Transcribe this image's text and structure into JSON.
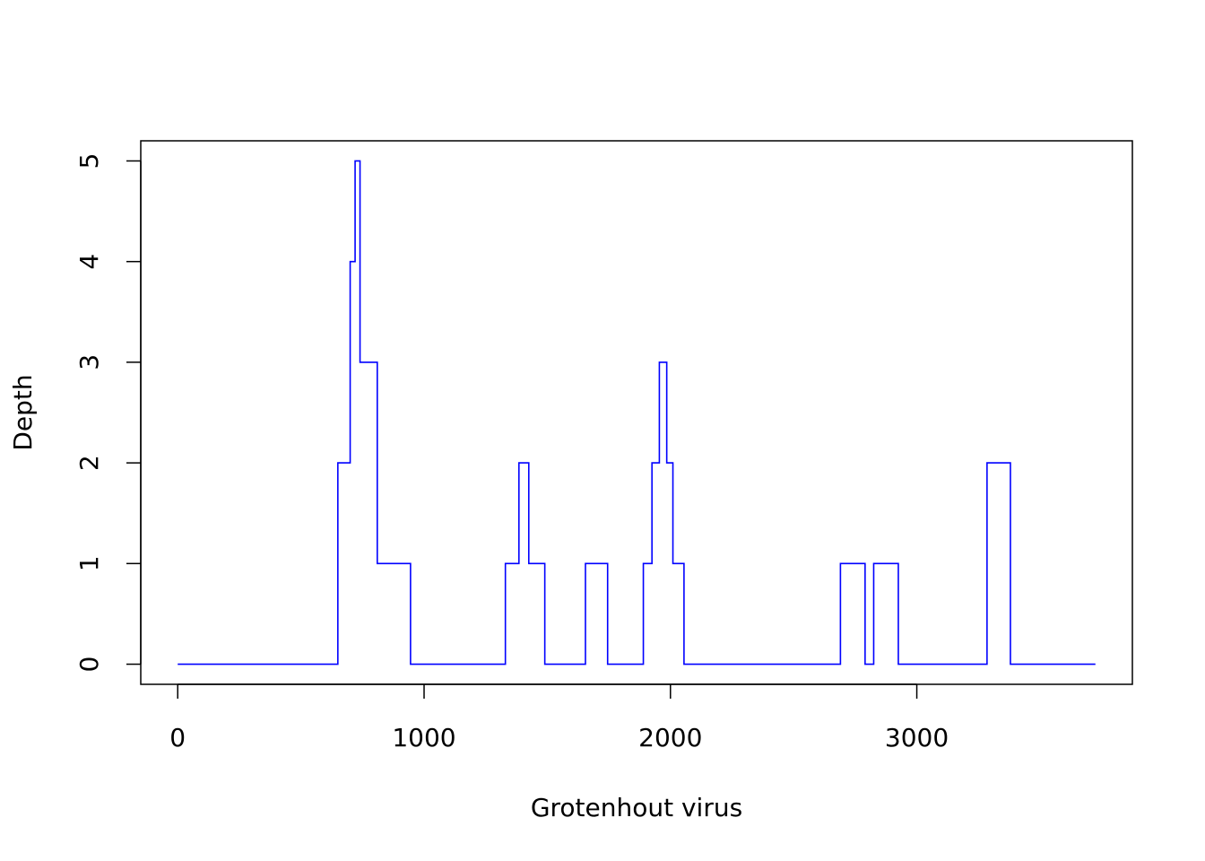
{
  "chart_data": {
    "type": "line",
    "title": "",
    "xlabel": "Grotenhout virus",
    "ylabel": "Depth",
    "xlim": [
      -150,
      3875
    ],
    "ylim": [
      -0.2,
      5.2
    ],
    "x_ticks": [
      0,
      1000,
      2000,
      3000
    ],
    "x_tick_labels": [
      "0",
      "1000",
      "2000",
      "3000"
    ],
    "y_ticks": [
      0,
      1,
      2,
      3,
      4,
      5
    ],
    "y_tick_labels": [
      "0",
      "1",
      "2",
      "3",
      "4",
      "5"
    ],
    "grid": false,
    "legend": "none",
    "series": [
      {
        "color": "#0000ff",
        "style": "step",
        "x": [
          0,
          650,
          690,
          700,
          720,
          740,
          790,
          810,
          840,
          945,
          1330,
          1385,
          1425,
          1490,
          1655,
          1745,
          1890,
          1925,
          1955,
          1985,
          2010,
          2055,
          2690,
          2790,
          2825,
          2925,
          3285,
          3380,
          3725
        ],
        "y": [
          0,
          2,
          2,
          4,
          5,
          3,
          3,
          1,
          1,
          0,
          1,
          2,
          1,
          0,
          1,
          0,
          1,
          2,
          3,
          2,
          1,
          0,
          1,
          0,
          1,
          0,
          2,
          0,
          0
        ]
      }
    ]
  }
}
